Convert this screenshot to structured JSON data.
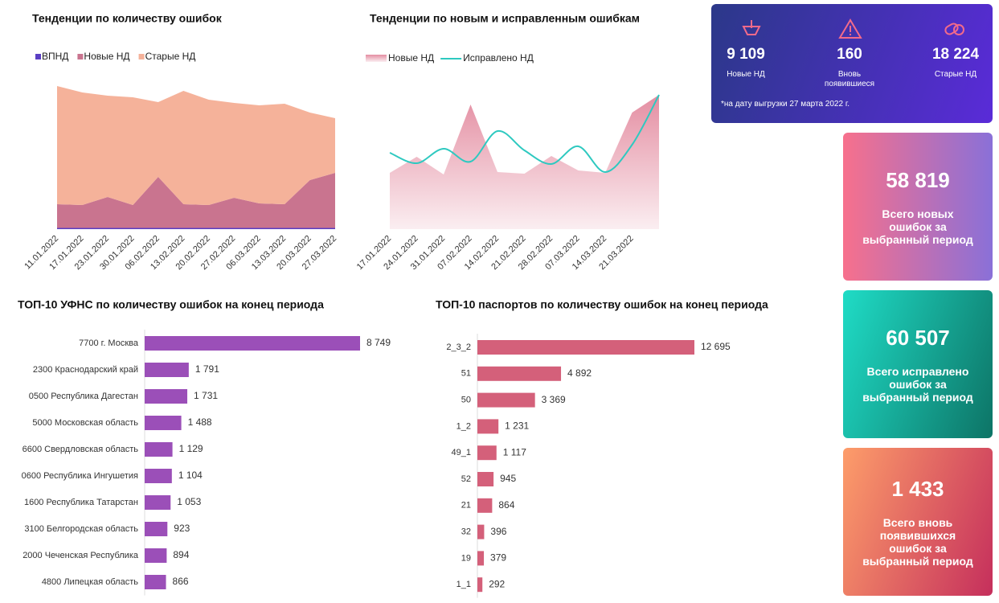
{
  "chart_data": [
    {
      "type": "stacked_area",
      "title": "Тенденции по количеству ошибок",
      "categories": [
        "11.01.2022",
        "17.01.2022",
        "23.01.2022",
        "30.01.2022",
        "06.02.2022",
        "13.02.2022",
        "20.02.2022",
        "27.02.2022",
        "06.03.2022",
        "13.03.2022",
        "20.03.2022",
        "27.03.2022"
      ],
      "series": [
        {
          "name": "ВПНД",
          "color": "#5b3fc4",
          "values": [
            150,
            150,
            150,
            150,
            150,
            150,
            150,
            150,
            150,
            150,
            150,
            150
          ]
        },
        {
          "name": "Новые НД",
          "color": "#c9748f",
          "values": [
            2950,
            2850,
            3850,
            2850,
            6350,
            2950,
            2850,
            3750,
            3050,
            2950,
            5950,
            6850
          ]
        },
        {
          "name": "Старые НД",
          "color": "#f5b29a",
          "values": [
            14700,
            14000,
            12600,
            13400,
            9300,
            14100,
            13100,
            11800,
            12200,
            12500,
            8400,
            6800
          ]
        }
      ],
      "legend": "top-left"
    },
    {
      "type": "area_line",
      "title": "Тенденции по новым и исправленным ошибкам",
      "categories": [
        "17.01.2022",
        "24.01.2022",
        "31.01.2022",
        "07.02.2022",
        "14.02.2022",
        "21.02.2022",
        "28.02.2022",
        "07.03.2022",
        "14.03.2022",
        "21.03.2022",
        null
      ],
      "series": [
        {
          "name": "Новые НД",
          "kind": "area",
          "color": "#e89aac",
          "values": [
            700,
            900,
            680,
            1550,
            710,
            690,
            910,
            730,
            700,
            1450,
            1670
          ]
        },
        {
          "name": "Исправлено НД",
          "kind": "line",
          "color": "#2ec9c0",
          "values": [
            950,
            820,
            1000,
            840,
            1220,
            980,
            810,
            1030,
            710,
            1050,
            1670
          ]
        }
      ],
      "legend": "top-left"
    },
    {
      "type": "hbar",
      "title": "ТОП-10 УФНС по количеству ошибок на конец периода",
      "color": "#9b4fb8",
      "categories": [
        "7700 г. Москва",
        "2300 Краснодарский край",
        "0500 Республика Дагестан",
        "5000 Московская область",
        "6600 Свердловская область",
        "0600 Республика Ингушетия",
        "1600 Республика Татарстан",
        "3100 Белгородская область",
        "2000 Чеченская Республика",
        "4800 Липецкая область"
      ],
      "values": [
        8749,
        1791,
        1731,
        1488,
        1129,
        1104,
        1053,
        923,
        894,
        866
      ],
      "value_labels": [
        "8 749",
        "1 791",
        "1 731",
        "1 488",
        "1 129",
        "1 104",
        "1 053",
        "923",
        "894",
        "866"
      ]
    },
    {
      "type": "hbar",
      "title": "ТОП-10 паспортов по количеству ошибок на конец периода",
      "color": "#d4607a",
      "categories": [
        "2_3_2",
        "51",
        "50",
        "1_2",
        "49_1",
        "52",
        "21",
        "32",
        "19",
        "1_1"
      ],
      "values": [
        12695,
        4892,
        3369,
        1231,
        1117,
        945,
        864,
        396,
        379,
        292
      ],
      "value_labels": [
        "12 695",
        "4 892",
        "3 369",
        "1 231",
        "1 117",
        "945",
        "864",
        "396",
        "379",
        "292"
      ]
    }
  ],
  "summary": {
    "items": [
      {
        "value": "9 109",
        "label": "Новые НД"
      },
      {
        "value": "160",
        "label": "Вновь появившиеся"
      },
      {
        "value": "18 224",
        "label": "Старые НД"
      }
    ],
    "note": "*на дату выгрузки 27 марта 2022 г."
  },
  "cards": [
    {
      "value": "58 819",
      "label": "Всего новых ошибок за выбранный период"
    },
    {
      "value": "60 507",
      "label": "Всего исправлено ошибок за выбранный период"
    },
    {
      "value": "1 433",
      "label": "Всего вновь появившихся ошибок за выбранный период"
    }
  ]
}
